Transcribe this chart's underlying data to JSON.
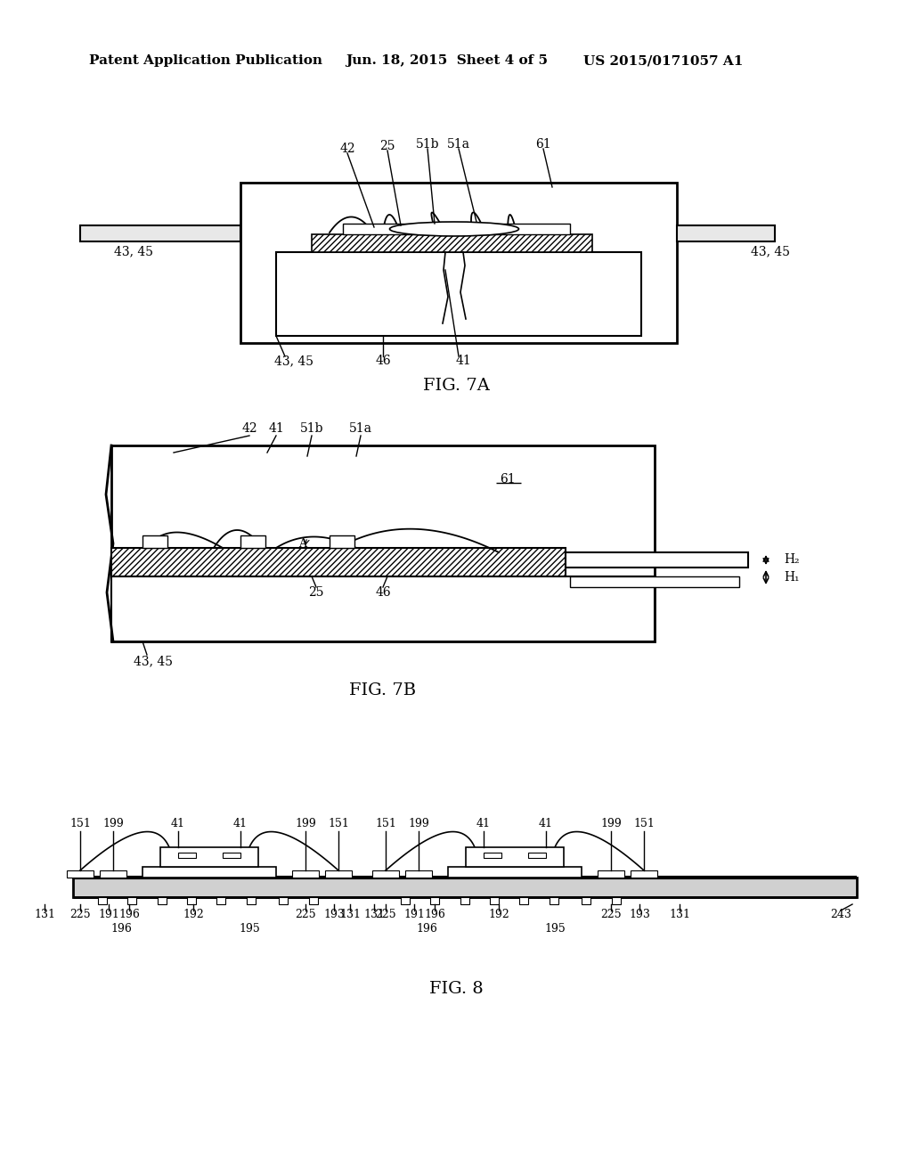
{
  "header_left": "Patent Application Publication",
  "header_mid": "Jun. 18, 2015  Sheet 4 of 5",
  "header_right": "US 2015/0171057 A1",
  "fig7a_label": "FIG. 7A",
  "fig7b_label": "FIG. 7B",
  "fig8_label": "FIG. 8",
  "bg_color": "#ffffff",
  "line_color": "#000000"
}
